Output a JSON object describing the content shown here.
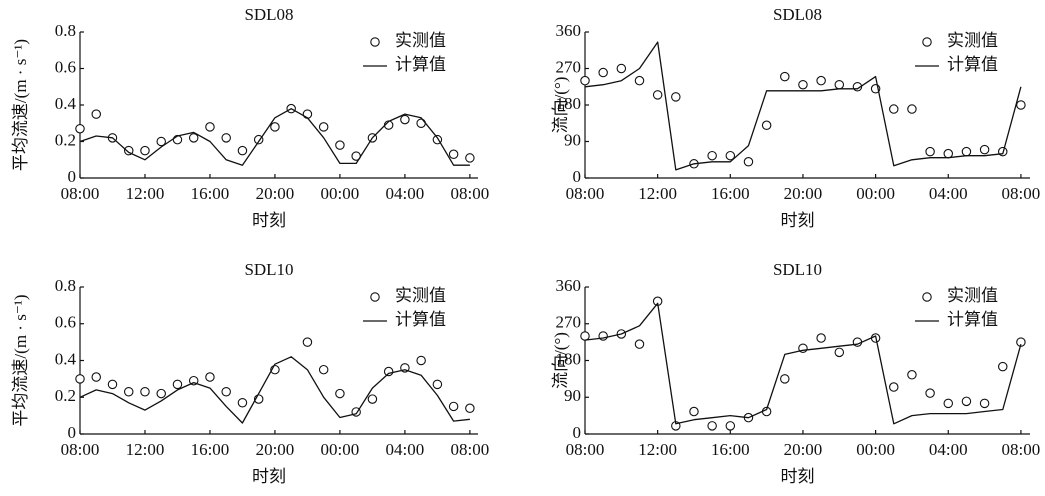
{
  "chart_data": [
    {
      "type": "line",
      "title": "SDL08",
      "y_label": "平均流速/(m · s⁻¹)",
      "x_label": "时刻",
      "x": [
        0,
        1,
        2,
        3,
        4,
        5,
        6,
        7,
        8,
        9,
        10,
        11,
        12,
        13,
        14,
        15,
        16,
        17,
        18,
        19,
        20,
        21,
        22,
        23,
        24
      ],
      "xlim": [
        0,
        24.5
      ],
      "xticks": [
        {
          "value": 0,
          "label": "08:00"
        },
        {
          "value": 4,
          "label": "12:00"
        },
        {
          "value": 8,
          "label": "16:00"
        },
        {
          "value": 12,
          "label": "20:00"
        },
        {
          "value": 16,
          "label": "00:00"
        },
        {
          "value": 20,
          "label": "04:00"
        },
        {
          "value": 24,
          "label": "08:00"
        }
      ],
      "ylim": [
        0,
        0.8
      ],
      "yticks": [
        0,
        0.2,
        0.4,
        0.6,
        0.8
      ],
      "legend": "upper right",
      "series": [
        {
          "name": "实测值",
          "mode": "markers",
          "color": "#111111",
          "values": [
            0.27,
            0.35,
            0.22,
            0.15,
            0.15,
            0.2,
            0.21,
            0.22,
            0.28,
            0.22,
            0.15,
            0.21,
            0.28,
            0.38,
            0.35,
            0.28,
            0.18,
            0.12,
            0.22,
            0.29,
            0.32,
            0.3,
            0.21,
            0.13,
            0.11
          ]
        },
        {
          "name": "计算值",
          "mode": "lines",
          "color": "#111111",
          "values": [
            0.2,
            0.23,
            0.22,
            0.14,
            0.1,
            0.17,
            0.23,
            0.25,
            0.2,
            0.1,
            0.07,
            0.2,
            0.33,
            0.38,
            0.33,
            0.22,
            0.08,
            0.08,
            0.22,
            0.31,
            0.35,
            0.33,
            0.22,
            0.07,
            0.07
          ]
        }
      ]
    },
    {
      "type": "line",
      "title": "SDL08",
      "y_label": "流向/(°)",
      "x_label": "时刻",
      "x": [
        0,
        1,
        2,
        3,
        4,
        5,
        6,
        7,
        8,
        9,
        10,
        11,
        12,
        13,
        14,
        15,
        16,
        17,
        18,
        19,
        20,
        21,
        22,
        23,
        24
      ],
      "xlim": [
        0,
        24.5
      ],
      "xticks": [
        {
          "value": 0,
          "label": "08:00"
        },
        {
          "value": 4,
          "label": "12:00"
        },
        {
          "value": 8,
          "label": "16:00"
        },
        {
          "value": 12,
          "label": "20:00"
        },
        {
          "value": 16,
          "label": "00:00"
        },
        {
          "value": 20,
          "label": "04:00"
        },
        {
          "value": 24,
          "label": "08:00"
        }
      ],
      "ylim": [
        0,
        360
      ],
      "yticks": [
        0,
        90,
        180,
        270,
        360
      ],
      "legend": "upper right",
      "series": [
        {
          "name": "实测值",
          "mode": "markers",
          "color": "#111111",
          "values": [
            240,
            260,
            270,
            240,
            205,
            200,
            35,
            55,
            55,
            40,
            130,
            250,
            230,
            240,
            230,
            225,
            220,
            170,
            170,
            65,
            60,
            65,
            70,
            65,
            180
          ]
        },
        {
          "name": "计算值",
          "mode": "lines",
          "color": "#111111",
          "values": [
            225,
            230,
            240,
            270,
            335,
            20,
            35,
            40,
            40,
            80,
            215,
            215,
            215,
            215,
            220,
            220,
            250,
            30,
            45,
            50,
            50,
            55,
            55,
            60,
            225
          ]
        }
      ]
    },
    {
      "type": "line",
      "title": "SDL10",
      "y_label": "平均流速/(m · s⁻¹)",
      "x_label": "时刻",
      "x": [
        0,
        1,
        2,
        3,
        4,
        5,
        6,
        7,
        8,
        9,
        10,
        11,
        12,
        13,
        14,
        15,
        16,
        17,
        18,
        19,
        20,
        21,
        22,
        23,
        24
      ],
      "xlim": [
        0,
        24.5
      ],
      "xticks": [
        {
          "value": 0,
          "label": "08:00"
        },
        {
          "value": 4,
          "label": "12:00"
        },
        {
          "value": 8,
          "label": "16:00"
        },
        {
          "value": 12,
          "label": "20:00"
        },
        {
          "value": 16,
          "label": "00:00"
        },
        {
          "value": 20,
          "label": "04:00"
        },
        {
          "value": 24,
          "label": "08:00"
        }
      ],
      "ylim": [
        0,
        0.8
      ],
      "yticks": [
        0,
        0.2,
        0.4,
        0.6,
        0.8
      ],
      "legend": "upper right",
      "series": [
        {
          "name": "实测值",
          "mode": "markers",
          "color": "#111111",
          "values": [
            0.3,
            0.31,
            0.27,
            0.23,
            0.23,
            0.22,
            0.27,
            0.29,
            0.31,
            0.23,
            0.17,
            0.19,
            0.35,
            null,
            0.5,
            0.35,
            0.22,
            0.12,
            0.19,
            0.34,
            0.36,
            0.4,
            0.27,
            0.15,
            0.14
          ]
        },
        {
          "name": "计算值",
          "mode": "lines",
          "color": "#111111",
          "values": [
            0.2,
            0.24,
            0.22,
            0.17,
            0.13,
            0.18,
            0.24,
            0.28,
            0.25,
            0.15,
            0.06,
            0.22,
            0.38,
            0.42,
            0.35,
            0.2,
            0.09,
            0.11,
            0.25,
            0.33,
            0.35,
            0.32,
            0.21,
            0.07,
            0.08
          ]
        }
      ]
    },
    {
      "type": "line",
      "title": "SDL10",
      "y_label": "流向/(°)",
      "x_label": "时刻",
      "x": [
        0,
        1,
        2,
        3,
        4,
        5,
        6,
        7,
        8,
        9,
        10,
        11,
        12,
        13,
        14,
        15,
        16,
        17,
        18,
        19,
        20,
        21,
        22,
        23,
        24
      ],
      "xlim": [
        0,
        24.5
      ],
      "xticks": [
        {
          "value": 0,
          "label": "08:00"
        },
        {
          "value": 4,
          "label": "12:00"
        },
        {
          "value": 8,
          "label": "16:00"
        },
        {
          "value": 12,
          "label": "20:00"
        },
        {
          "value": 16,
          "label": "00:00"
        },
        {
          "value": 20,
          "label": "04:00"
        },
        {
          "value": 24,
          "label": "08:00"
        }
      ],
      "ylim": [
        0,
        360
      ],
      "yticks": [
        0,
        90,
        180,
        270,
        360
      ],
      "legend": "upper right",
      "series": [
        {
          "name": "实测值",
          "mode": "markers",
          "color": "#111111",
          "values": [
            240,
            240,
            245,
            220,
            325,
            20,
            55,
            20,
            20,
            40,
            55,
            135,
            210,
            235,
            200,
            225,
            235,
            115,
            145,
            100,
            75,
            80,
            75,
            165,
            225
          ]
        },
        {
          "name": "计算值",
          "mode": "lines",
          "color": "#111111",
          "values": [
            230,
            235,
            245,
            265,
            320,
            25,
            35,
            40,
            45,
            40,
            60,
            195,
            205,
            210,
            215,
            220,
            240,
            25,
            45,
            50,
            50,
            50,
            55,
            60,
            220
          ]
        }
      ]
    }
  ]
}
